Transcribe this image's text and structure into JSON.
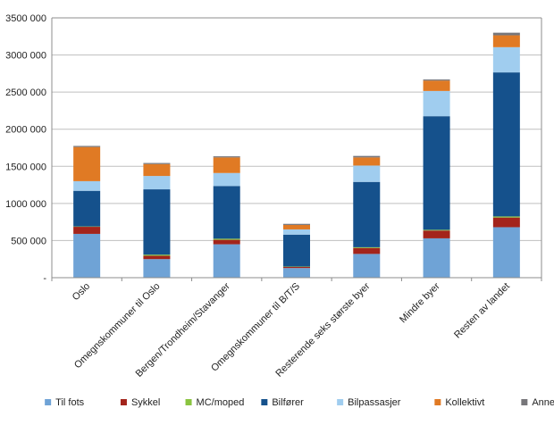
{
  "chart_data": {
    "type": "bar",
    "stacked": true,
    "categories": [
      "Oslo",
      "Omegnskommuner til Oslo",
      "Bergen/Trondheim/Stavanger",
      "Omegnskommuner til B/T/S",
      "Resterende seks største byer",
      "Mindre byer",
      "Resten av landet"
    ],
    "series": [
      {
        "name": "Til fots",
        "color": "#6fa3d6",
        "values": [
          590000,
          250000,
          450000,
          130000,
          320000,
          530000,
          680000
        ]
      },
      {
        "name": "Sykkel",
        "color": "#a3241b",
        "values": [
          95000,
          45000,
          60000,
          15000,
          80000,
          105000,
          130000
        ]
      },
      {
        "name": "MC/moped",
        "color": "#8ac440",
        "values": [
          5000,
          15000,
          15000,
          5000,
          10000,
          10000,
          15000
        ]
      },
      {
        "name": "Bilfører",
        "color": "#15518c",
        "values": [
          480000,
          880000,
          710000,
          430000,
          880000,
          1530000,
          1940000
        ]
      },
      {
        "name": "Bilpassasjer",
        "color": "#a0cdef",
        "values": [
          130000,
          180000,
          175000,
          70000,
          220000,
          340000,
          340000
        ]
      },
      {
        "name": "Kollektivt",
        "color": "#e07a24",
        "values": [
          460000,
          160000,
          210000,
          60000,
          110000,
          140000,
          160000
        ]
      },
      {
        "name": "Annet",
        "color": "#77767a",
        "values": [
          15000,
          15000,
          15000,
          15000,
          20000,
          15000,
          35000
        ]
      }
    ],
    "ylim": [
      0,
      3500000
    ],
    "yticks": [
      0,
      500000,
      1000000,
      1500000,
      2000000,
      2500000,
      3000000,
      3500000
    ],
    "ytick_labels": [
      "-",
      "500 000",
      "1000 000",
      "1500 000",
      "2000 000",
      "2500 000",
      "3000 000",
      "3500 000"
    ],
    "grid": true,
    "legend_position": "bottom"
  }
}
